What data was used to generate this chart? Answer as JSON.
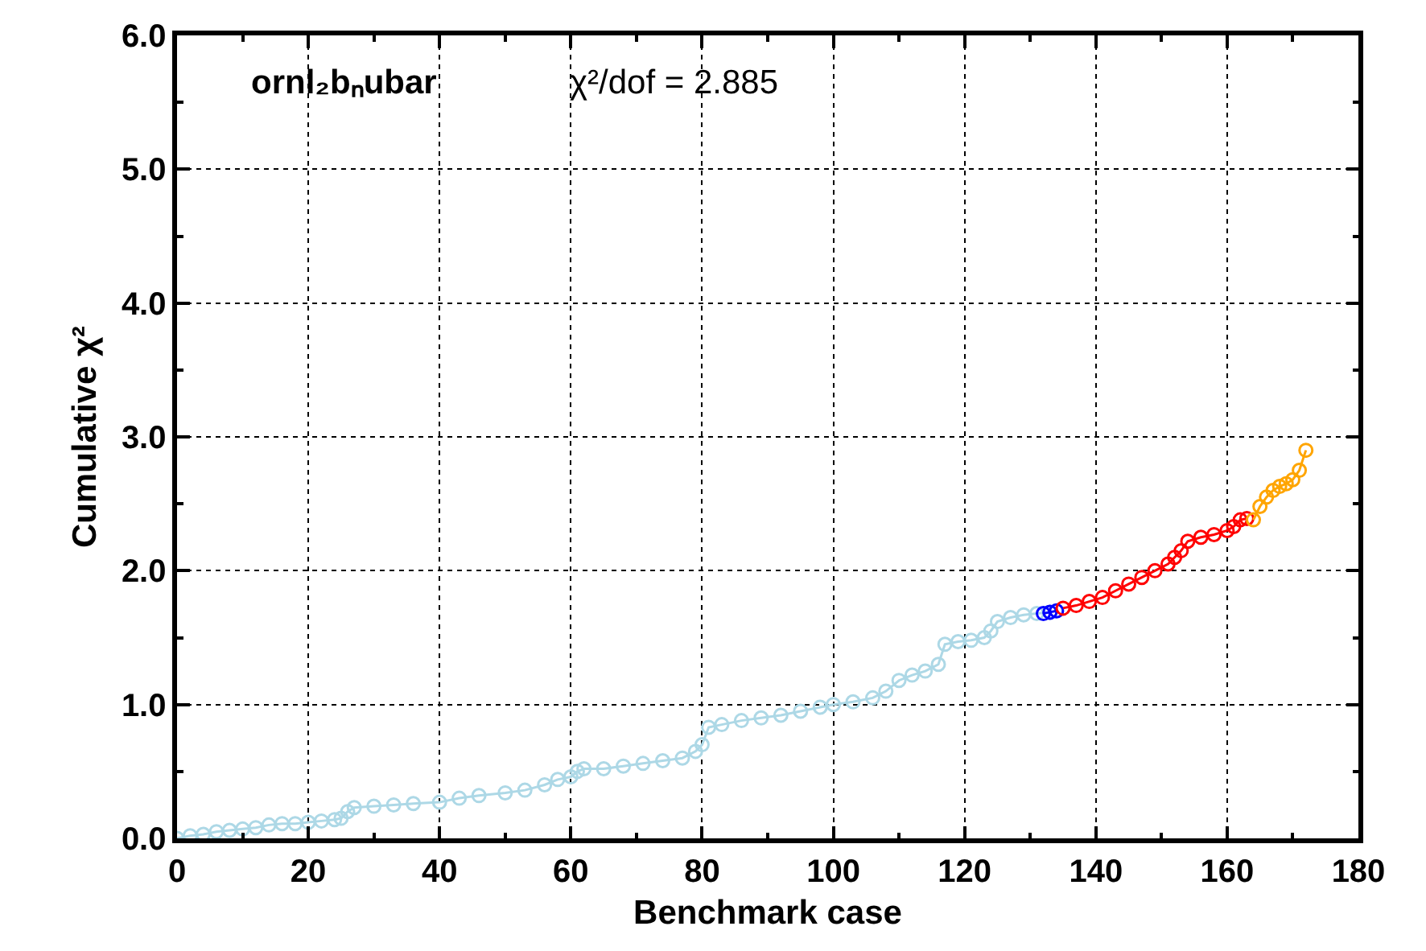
{
  "chart_data": {
    "type": "line",
    "xlabel": "Benchmark case",
    "ylabel": "Cumulative χ²",
    "annotations": [
      "ornl₂bₙubar",
      "χ²/dof = 2.885"
    ],
    "xlim": [
      0,
      180
    ],
    "ylim": [
      0,
      6
    ],
    "xticks": [
      0,
      {
        "value": 10,
        "label": null
      },
      20,
      {
        "value": 30,
        "label": null
      },
      40,
      {
        "value": 50,
        "label": null
      },
      60,
      {
        "value": 70,
        "label": null
      },
      80,
      {
        "value": 90,
        "label": null
      },
      100,
      {
        "value": 110,
        "label": null
      },
      120,
      {
        "value": 130,
        "label": null
      },
      140,
      {
        "value": 150,
        "label": null
      },
      160,
      {
        "value": 170,
        "label": null
      },
      180
    ],
    "yticks": [
      {
        "value": 0,
        "label": "0.0"
      },
      {
        "value": 0.5,
        "label": null
      },
      {
        "value": 1,
        "label": "1.0"
      },
      {
        "value": 1.5,
        "label": null
      },
      {
        "value": 2,
        "label": "2.0"
      },
      {
        "value": 2.5,
        "label": null
      },
      {
        "value": 3,
        "label": "3.0"
      },
      {
        "value": 3.5,
        "label": null
      },
      {
        "value": 4,
        "label": "4.0"
      },
      {
        "value": 4.5,
        "label": null
      },
      {
        "value": 5,
        "label": "5.0"
      },
      {
        "value": 5.5,
        "label": null
      },
      {
        "value": 6,
        "label": "6.0"
      }
    ],
    "grid": true,
    "marker": "circle",
    "line_style": "solid",
    "series": [
      {
        "color": "#add8e6",
        "x": [
          0,
          2,
          4,
          6,
          8,
          10,
          12,
          14,
          16,
          18,
          20,
          22,
          24,
          25,
          26,
          27,
          30,
          33,
          36,
          40,
          43,
          46,
          50,
          53,
          56,
          58,
          60,
          61,
          62,
          65,
          68,
          71,
          74,
          77,
          79,
          80,
          81,
          83,
          86,
          89,
          92,
          95,
          98,
          100,
          103,
          106,
          108,
          110,
          112,
          114,
          116,
          117,
          119,
          121,
          123,
          124,
          125,
          127,
          129,
          131,
          133
        ],
        "values": [
          0.0,
          0.02,
          0.03,
          0.05,
          0.06,
          0.07,
          0.08,
          0.1,
          0.11,
          0.11,
          0.12,
          0.13,
          0.14,
          0.15,
          0.2,
          0.23,
          0.24,
          0.25,
          0.26,
          0.27,
          0.3,
          0.32,
          0.34,
          0.36,
          0.4,
          0.44,
          0.46,
          0.5,
          0.52,
          0.52,
          0.54,
          0.56,
          0.58,
          0.6,
          0.65,
          0.7,
          0.83,
          0.85,
          0.88,
          0.9,
          0.92,
          0.95,
          0.98,
          1.0,
          1.02,
          1.05,
          1.1,
          1.18,
          1.22,
          1.25,
          1.3,
          1.45,
          1.47,
          1.48,
          1.5,
          1.55,
          1.62,
          1.65,
          1.67,
          1.68,
          1.69
        ]
      },
      {
        "color": "#0000ff",
        "x": [
          132,
          133,
          134
        ],
        "values": [
          1.68,
          1.69,
          1.7
        ]
      },
      {
        "color": "#ff0000",
        "x": [
          135,
          137,
          139,
          141,
          143,
          145,
          147,
          149,
          151,
          152,
          153,
          154,
          156,
          158,
          160,
          161,
          162,
          163
        ],
        "values": [
          1.72,
          1.74,
          1.77,
          1.8,
          1.85,
          1.9,
          1.95,
          2.0,
          2.05,
          2.1,
          2.15,
          2.22,
          2.25,
          2.27,
          2.3,
          2.33,
          2.38,
          2.39
        ]
      },
      {
        "color": "#ffa500",
        "x": [
          164,
          165,
          166,
          167,
          168,
          169,
          170,
          171,
          172
        ],
        "values": [
          2.38,
          2.48,
          2.55,
          2.6,
          2.63,
          2.65,
          2.68,
          2.75,
          2.9
        ]
      }
    ]
  }
}
